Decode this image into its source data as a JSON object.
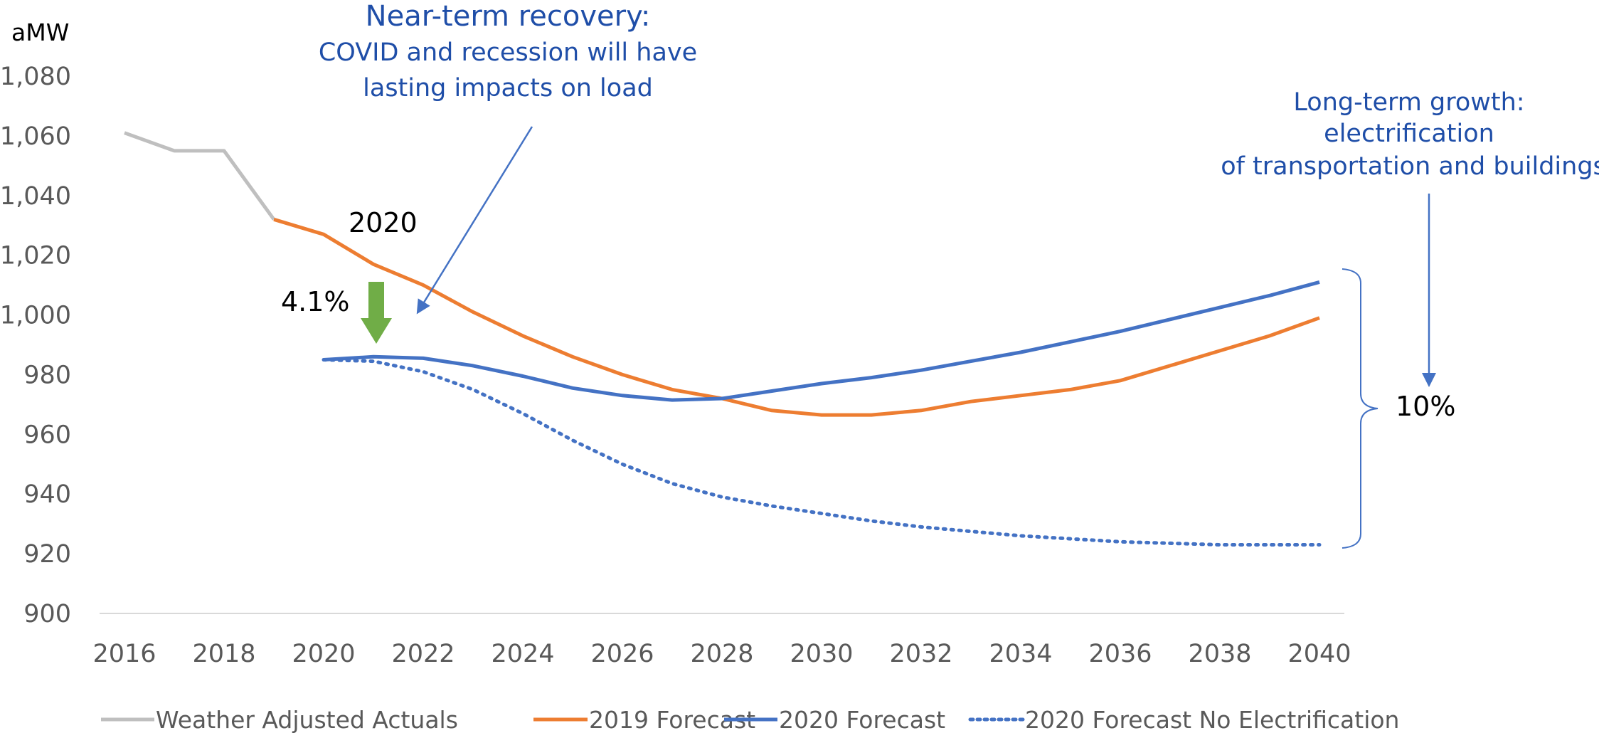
{
  "colors": {
    "actuals": "#bfbfbf",
    "forecast_2019": "#ed7d31",
    "forecast_2020": "#4472c4",
    "no_electrification": "#4472c4",
    "arrow_green": "#70ad47",
    "annotation_blue": "#1f4ea8",
    "axis": "#d9d9d9"
  },
  "chart_data": {
    "type": "line",
    "ylabel": "aMW",
    "xlabel": "",
    "title": "",
    "xlim": [
      2016,
      2040
    ],
    "ylim": [
      900,
      1080
    ],
    "grid": false,
    "legend_position": "bottom",
    "x_ticks": [
      "2016",
      "2018",
      "2020",
      "2022",
      "2024",
      "2026",
      "2028",
      "2030",
      "2032",
      "2034",
      "2036",
      "2038",
      "2040"
    ],
    "y_ticks": [
      "900",
      "920",
      "940",
      "960",
      "980",
      "1,000",
      "1,020",
      "1,040",
      "1,060",
      "1,080"
    ],
    "series": [
      {
        "name": "Weather Adjusted Actuals",
        "style": "solid",
        "x": [
          2016,
          2017,
          2018,
          2019
        ],
        "y": [
          1061,
          1055,
          1055,
          1032
        ]
      },
      {
        "name": "2019 Forecast",
        "style": "solid",
        "x": [
          2019,
          2020,
          2021,
          2022,
          2023,
          2024,
          2025,
          2026,
          2027,
          2028,
          2029,
          2030,
          2031,
          2032,
          2033,
          2034,
          2035,
          2036,
          2037,
          2038,
          2039,
          2040
        ],
        "y": [
          1032,
          1027,
          1017,
          1010,
          1001,
          993,
          986,
          980,
          975,
          972,
          968,
          966.5,
          966.5,
          968,
          971,
          973,
          975,
          978,
          983,
          988,
          993,
          999
        ]
      },
      {
        "name": "2020 Forecast",
        "style": "solid",
        "x": [
          2020,
          2021,
          2022,
          2023,
          2024,
          2025,
          2026,
          2027,
          2028,
          2029,
          2030,
          2031,
          2032,
          2033,
          2034,
          2035,
          2036,
          2037,
          2038,
          2039,
          2040
        ],
        "y": [
          985,
          986,
          985.5,
          983,
          979.5,
          975.5,
          973,
          971.5,
          972,
          974.5,
          977,
          979,
          981.5,
          984.5,
          987.5,
          991,
          994.5,
          998.5,
          1002.5,
          1006.5,
          1011
        ]
      },
      {
        "name": "2020 Forecast No Electrification",
        "style": "dotted",
        "x": [
          2020,
          2021,
          2022,
          2023,
          2024,
          2025,
          2026,
          2027,
          2028,
          2029,
          2030,
          2031,
          2032,
          2033,
          2034,
          2035,
          2036,
          2037,
          2038,
          2039,
          2040
        ],
        "y": [
          985,
          984.5,
          981,
          975,
          967,
          958,
          950,
          943.5,
          939,
          936,
          933.5,
          931,
          929,
          927.5,
          926,
          925,
          924,
          923.5,
          923,
          923,
          923
        ]
      }
    ],
    "annotations": {
      "recovery_title": "Near-term recovery:",
      "recovery_line1": "COVID and recession will have",
      "recovery_line2": "lasting impacts on load",
      "growth_title": "Long-term growth:",
      "growth_line1": "electrification",
      "growth_line2": "of transportation and buildings",
      "year_label": "2020",
      "drop_label": "4.1%",
      "range_label": "10%"
    }
  }
}
